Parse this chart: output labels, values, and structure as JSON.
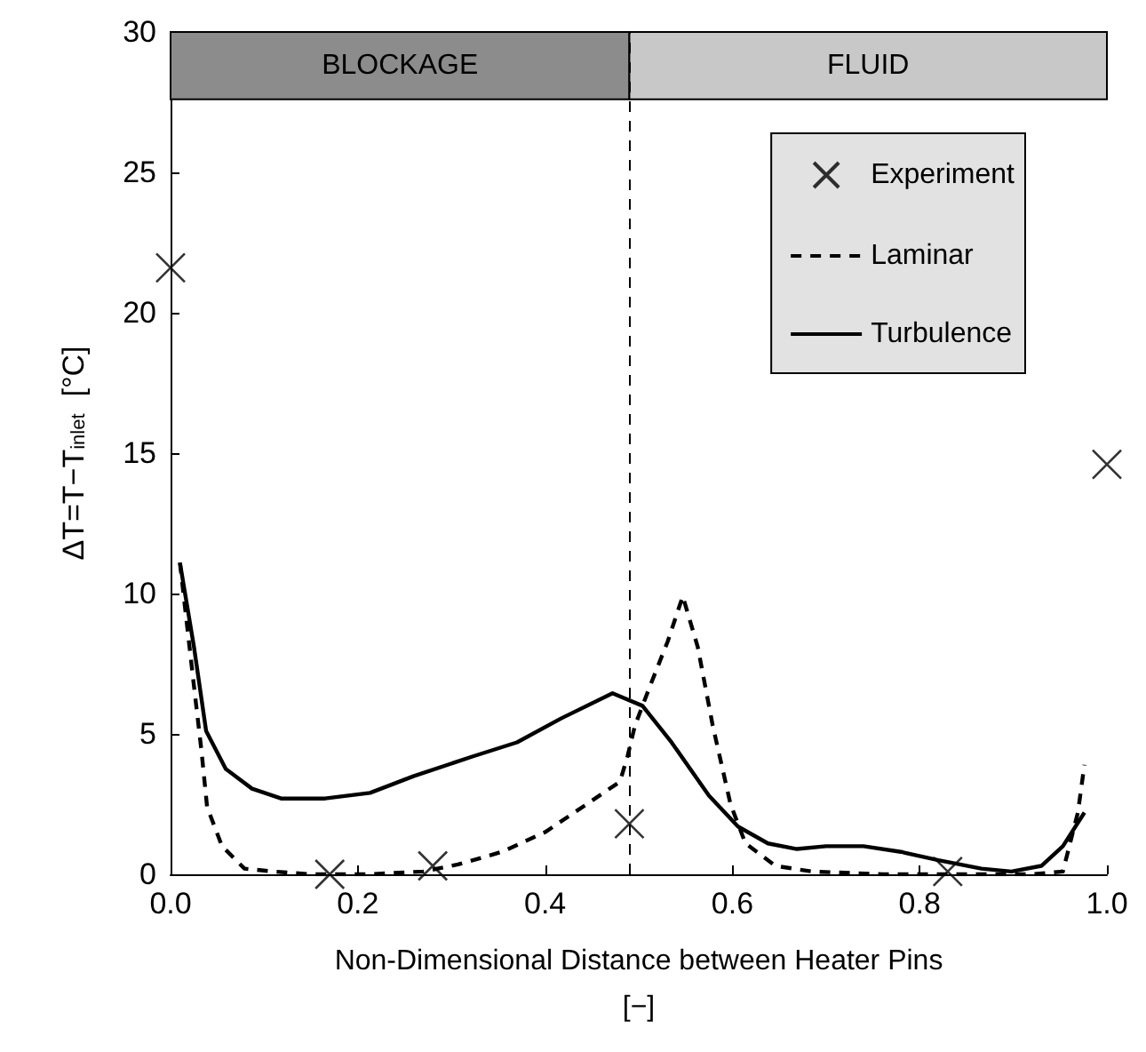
{
  "chart_data": {
    "type": "line",
    "xlabel": "Non-Dimensional Distance between Heater Pins\n[−]",
    "ylabel": "ΔT=T−T$_{inlet}$  [°C]",
    "xlim": [
      0,
      1
    ],
    "ylim": [
      0,
      30
    ],
    "xticks": [
      {
        "value": 0,
        "label": "0.0"
      },
      0.2,
      0.4,
      0.6,
      0.8,
      {
        "value": 1,
        "label": "1.0"
      }
    ],
    "yticks": [
      0,
      5,
      10,
      15,
      20,
      25,
      30
    ],
    "grid": false,
    "legend": "top right",
    "series": [
      {
        "name": "Experiment",
        "type": "scatter",
        "marker": "cross",
        "color": "#000000",
        "x": [
          0.0,
          0.17,
          0.28,
          0.49,
          0.83,
          1.0
        ],
        "values": [
          21.6,
          0,
          0.3,
          1.8,
          0.1,
          14.6
        ]
      },
      {
        "name": "Laminar",
        "type": "line",
        "marker": "none",
        "line_style": "dashed",
        "color": "#000000",
        "x": [
          0.01,
          0.025,
          0.033,
          0.039,
          0.055,
          0.079,
          0.11,
          0.15,
          0.21,
          0.27,
          0.307,
          0.354,
          0.4,
          0.449,
          0.48,
          0.488,
          0.496,
          0.512,
          0.531,
          0.547,
          0.563,
          0.579,
          0.598,
          0.614,
          0.646,
          0.685,
          0.76,
          0.843,
          0.92,
          0.953,
          0.969,
          0.976
        ],
        "values": [
          11.1,
          6.7,
          4.4,
          2.4,
          1.0,
          0.2,
          0.1,
          0,
          0,
          0.1,
          0.35,
          0.8,
          1.5,
          2.6,
          3.3,
          4.2,
          5.3,
          6.7,
          8.3,
          9.9,
          8.1,
          5.3,
          2.5,
          1.1,
          0.3,
          0.1,
          0,
          0,
          0,
          0.1,
          2.2,
          3.9
        ]
      },
      {
        "name": "Turbulence",
        "type": "line",
        "marker": "none",
        "line_style": "solid",
        "color": "#000000",
        "x": [
          0.01,
          0.025,
          0.038,
          0.059,
          0.087,
          0.118,
          0.165,
          0.213,
          0.26,
          0.323,
          0.37,
          0.417,
          0.472,
          0.504,
          0.535,
          0.575,
          0.606,
          0.638,
          0.669,
          0.7,
          0.74,
          0.78,
          0.82,
          0.866,
          0.898,
          0.93,
          0.953,
          0.976
        ],
        "values": [
          11.1,
          8.1,
          5.1,
          3.75,
          3.05,
          2.7,
          2.7,
          2.9,
          3.5,
          4.2,
          4.7,
          5.55,
          6.45,
          6.0,
          4.7,
          2.8,
          1.7,
          1.1,
          0.9,
          1.0,
          1.0,
          0.8,
          0.5,
          0.2,
          0.1,
          0.3,
          1.0,
          2.2
        ]
      }
    ],
    "ref_lines": [
      {
        "axis": "x",
        "value": 0.49,
        "line_style": "dashed",
        "color": "#000000"
      }
    ],
    "bands": [
      {
        "axis": "x",
        "from": 0,
        "to": 0.49,
        "label": "BLOCKAGE",
        "color": "#8c8c8c"
      },
      {
        "axis": "x",
        "from": 0.49,
        "to": 1,
        "label": "FLUID",
        "color": "#c8c8c8"
      }
    ]
  }
}
